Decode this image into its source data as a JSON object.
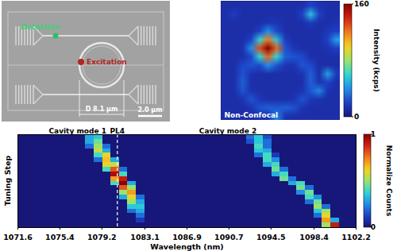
{
  "chart_data": [
    {
      "type": "heatmap",
      "x_label": "Wavelength (nm)",
      "y_label": "Tuning Step",
      "tick_labels": "x",
      "xlim": [
        1071.6,
        1102.2
      ],
      "xticks": [
        1071.6,
        1075.4,
        1079.2,
        1083.1,
        1086.9,
        1090.7,
        1094.5,
        1098.4,
        1102.2
      ],
      "x_edges": [
        1071.6,
        1072.365,
        1073.13,
        1073.895,
        1074.66,
        1075.425,
        1076.19,
        1076.955,
        1077.72,
        1078.485,
        1079.25,
        1080.015,
        1080.78,
        1081.545,
        1082.31,
        1083.075,
        1083.84,
        1084.605,
        1085.37,
        1086.135,
        1086.9,
        1087.665,
        1088.43,
        1089.195,
        1089.96,
        1090.725,
        1091.49,
        1092.255,
        1093.02,
        1093.785,
        1094.55,
        1095.315,
        1096.08,
        1096.845,
        1097.61,
        1098.375,
        1099.14,
        1099.905,
        1100.67,
        1101.435,
        1102.2
      ],
      "cells": [
        [
          0,
          0,
          0,
          0,
          0,
          0,
          0,
          0,
          0.3,
          0.35,
          0,
          0,
          0,
          0,
          0,
          0,
          0,
          0,
          0,
          0,
          0,
          0,
          0,
          0,
          0,
          0,
          0,
          0.2,
          0.35,
          0.15,
          0,
          0,
          0,
          0,
          0,
          0,
          0,
          0,
          0,
          0
        ],
        [
          0,
          0,
          0,
          0,
          0,
          0,
          0,
          0,
          0.3,
          0.45,
          0,
          0,
          0,
          0,
          0,
          0,
          0,
          0,
          0,
          0,
          0,
          0,
          0,
          0,
          0,
          0,
          0,
          0.15,
          0.35,
          0.2,
          0,
          0,
          0,
          0,
          0,
          0,
          0,
          0,
          0,
          0
        ],
        [
          0,
          0,
          0,
          0,
          0,
          0,
          0,
          0,
          0.2,
          0.5,
          0.2,
          0,
          0,
          0,
          0,
          0,
          0,
          0,
          0,
          0,
          0,
          0,
          0,
          0,
          0,
          0,
          0,
          0,
          0.4,
          0.2,
          0,
          0,
          0,
          0,
          0,
          0,
          0,
          0,
          0,
          0
        ],
        [
          0,
          0,
          0,
          0,
          0,
          0,
          0,
          0,
          0,
          0.55,
          0.3,
          0,
          0,
          0,
          0,
          0,
          0,
          0,
          0,
          0,
          0,
          0,
          0,
          0,
          0,
          0,
          0,
          0,
          0.35,
          0.3,
          0,
          0,
          0,
          0,
          0,
          0,
          0,
          0,
          0,
          0
        ],
        [
          0,
          0,
          0,
          0,
          0,
          0,
          0,
          0,
          0,
          0.4,
          0.6,
          0,
          0,
          0,
          0,
          0,
          0,
          0,
          0,
          0,
          0,
          0,
          0,
          0,
          0,
          0,
          0,
          0,
          0.2,
          0.4,
          0.1,
          0,
          0,
          0,
          0,
          0,
          0,
          0,
          0,
          0
        ],
        [
          0,
          0,
          0,
          0,
          0,
          0,
          0,
          0,
          0,
          0.2,
          0.65,
          0.3,
          0,
          0,
          0,
          0,
          0,
          0,
          0,
          0,
          0,
          0,
          0,
          0,
          0,
          0,
          0,
          0,
          0,
          0.4,
          0.25,
          0,
          0,
          0,
          0,
          0,
          0,
          0,
          0,
          0
        ],
        [
          0,
          0,
          0,
          0,
          0,
          0,
          0,
          0,
          0,
          0,
          0.6,
          0.55,
          0,
          0,
          0,
          0,
          0,
          0,
          0,
          0,
          0,
          0,
          0,
          0,
          0,
          0,
          0,
          0,
          0,
          0.3,
          0.4,
          0,
          0,
          0,
          0,
          0,
          0,
          0,
          0,
          0
        ],
        [
          0,
          0,
          0,
          0,
          0,
          0,
          0,
          0,
          0,
          0,
          0.4,
          0.8,
          0.2,
          0,
          0,
          0,
          0,
          0,
          0,
          0,
          0,
          0,
          0,
          0,
          0,
          0,
          0,
          0,
          0,
          0,
          0.45,
          0.2,
          0,
          0,
          0,
          0,
          0,
          0,
          0,
          0
        ],
        [
          0,
          0,
          0,
          0,
          0,
          0,
          0,
          0,
          0,
          0,
          0,
          0.95,
          0.4,
          0,
          0,
          0,
          0,
          0,
          0,
          0,
          0,
          0,
          0,
          0,
          0,
          0,
          0,
          0,
          0,
          0,
          0.3,
          0.4,
          0,
          0,
          0,
          0,
          0,
          0,
          0,
          0
        ],
        [
          0,
          0,
          0,
          0,
          0,
          0,
          0,
          0,
          0,
          0,
          0,
          0.7,
          0.9,
          0,
          0,
          0,
          0,
          0,
          0,
          0,
          0,
          0,
          0,
          0,
          0,
          0,
          0,
          0,
          0,
          0,
          0,
          0.45,
          0.2,
          0,
          0,
          0,
          0,
          0,
          0,
          0
        ],
        [
          0,
          0,
          0,
          0,
          0,
          0,
          0,
          0,
          0,
          0,
          0,
          0.4,
          1,
          0.3,
          0,
          0,
          0,
          0,
          0,
          0,
          0,
          0,
          0,
          0,
          0,
          0,
          0,
          0,
          0,
          0,
          0,
          0,
          0.3,
          0.4,
          0,
          0,
          0,
          0,
          0,
          0
        ],
        [
          0,
          0,
          0,
          0,
          0,
          0,
          0,
          0,
          0,
          0,
          0,
          0,
          0.8,
          0.5,
          0,
          0,
          0,
          0,
          0,
          0,
          0,
          0,
          0,
          0,
          0,
          0,
          0,
          0,
          0,
          0,
          0,
          0,
          0,
          0.45,
          0.2,
          0,
          0,
          0,
          0,
          0
        ],
        [
          0,
          0,
          0,
          0,
          0,
          0,
          0,
          0,
          0,
          0,
          0,
          0,
          0.5,
          0.7,
          0,
          0,
          0,
          0,
          0,
          0,
          0,
          0,
          0,
          0,
          0,
          0,
          0,
          0,
          0,
          0,
          0,
          0,
          0,
          0.25,
          0.45,
          0,
          0,
          0,
          0,
          0
        ],
        [
          0,
          0,
          0,
          0,
          0,
          0,
          0,
          0,
          0,
          0,
          0,
          0,
          0.3,
          0.6,
          0.2,
          0,
          0,
          0,
          0,
          0,
          0,
          0,
          0,
          0,
          0,
          0,
          0,
          0,
          0,
          0,
          0,
          0,
          0,
          0,
          0.4,
          0.25,
          0,
          0,
          0,
          0
        ],
        [
          0,
          0,
          0,
          0,
          0,
          0,
          0,
          0,
          0,
          0,
          0,
          0,
          0,
          0.5,
          0.3,
          0,
          0,
          0,
          0,
          0,
          0,
          0,
          0,
          0,
          0,
          0,
          0,
          0,
          0,
          0,
          0,
          0,
          0,
          0,
          0.2,
          0.45,
          0,
          0,
          0,
          0
        ],
        [
          0,
          0,
          0,
          0,
          0,
          0,
          0,
          0,
          0,
          0,
          0,
          0,
          0,
          0.35,
          0.35,
          0,
          0,
          0,
          0,
          0,
          0,
          0,
          0,
          0,
          0,
          0,
          0,
          0,
          0,
          0,
          0,
          0,
          0,
          0,
          0,
          0.5,
          0.2,
          0,
          0,
          0
        ],
        [
          0,
          0,
          0,
          0,
          0,
          0,
          0,
          0,
          0,
          0,
          0,
          0,
          0,
          0.2,
          0.3,
          0,
          0,
          0,
          0,
          0,
          0,
          0,
          0,
          0,
          0,
          0,
          0,
          0,
          0,
          0,
          0,
          0,
          0,
          0,
          0,
          0.35,
          0.5,
          0,
          0,
          0
        ],
        [
          0,
          0,
          0,
          0,
          0,
          0,
          0,
          0,
          0,
          0,
          0,
          0,
          0,
          0,
          0.2,
          0,
          0,
          0,
          0,
          0,
          0,
          0,
          0,
          0,
          0,
          0,
          0,
          0,
          0,
          0,
          0,
          0,
          0,
          0,
          0,
          0.2,
          0.6,
          0,
          0,
          0
        ],
        [
          0,
          0,
          0,
          0,
          0,
          0,
          0,
          0,
          0,
          0,
          0,
          0,
          0,
          0,
          0.1,
          0,
          0,
          0,
          0,
          0,
          0,
          0,
          0,
          0,
          0,
          0,
          0,
          0,
          0,
          0,
          0,
          0,
          0,
          0,
          0,
          0,
          0.7,
          0.3,
          0,
          0
        ],
        [
          0,
          0,
          0,
          0,
          0,
          0,
          0,
          0,
          0,
          0,
          0,
          0,
          0,
          0,
          0,
          0,
          0,
          0,
          0,
          0,
          0,
          0,
          0,
          0,
          0,
          0,
          0,
          0,
          0,
          0,
          0,
          0,
          0,
          0,
          0,
          0,
          0.5,
          0.9,
          0,
          0
        ]
      ],
      "colorbar": {
        "label": "Normalize Counts",
        "range": [
          0,
          1
        ],
        "ticks": [
          0,
          1
        ]
      },
      "annotations": [
        {
          "text": "Cavity mode 1",
          "x": 1077.0
        },
        {
          "text": "PL4",
          "x": 1080.6,
          "line_style": "dashed"
        },
        {
          "text": "Cavity mode 2",
          "x": 1090.6
        }
      ]
    },
    {
      "type": "image_map",
      "caption": "Non-Confocal",
      "tick_labels": false,
      "cells": [
        [
          12,
          12,
          12,
          12,
          12,
          12,
          12,
          12,
          12,
          12,
          20,
          14,
          12,
          12
        ],
        [
          12,
          18,
          12,
          12,
          12,
          12,
          12,
          12,
          12,
          20,
          55,
          20,
          12,
          12
        ],
        [
          12,
          12,
          12,
          12,
          12,
          15,
          15,
          12,
          12,
          12,
          18,
          12,
          12,
          14
        ],
        [
          12,
          12,
          12,
          12,
          20,
          40,
          22,
          12,
          12,
          12,
          12,
          12,
          16,
          20
        ],
        [
          12,
          12,
          12,
          20,
          60,
          120,
          55,
          18,
          12,
          12,
          12,
          12,
          20,
          45
        ],
        [
          12,
          12,
          14,
          40,
          130,
          160,
          125,
          25,
          15,
          12,
          12,
          12,
          14,
          20
        ],
        [
          12,
          12,
          12,
          22,
          60,
          125,
          60,
          28,
          25,
          22,
          12,
          12,
          12,
          12
        ],
        [
          12,
          12,
          22,
          25,
          22,
          40,
          25,
          15,
          14,
          25,
          22,
          12,
          12,
          12
        ],
        [
          12,
          12,
          25,
          14,
          12,
          12,
          12,
          12,
          12,
          14,
          28,
          12,
          45,
          18
        ],
        [
          12,
          12,
          28,
          12,
          12,
          12,
          12,
          12,
          12,
          12,
          28,
          14,
          20,
          12
        ],
        [
          12,
          12,
          25,
          14,
          12,
          12,
          12,
          12,
          12,
          14,
          26,
          38,
          14,
          12
        ],
        [
          12,
          12,
          14,
          25,
          16,
          12,
          12,
          12,
          14,
          25,
          16,
          14,
          12,
          12
        ],
        [
          12,
          12,
          12,
          14,
          25,
          28,
          26,
          28,
          25,
          14,
          12,
          12,
          12,
          12
        ],
        [
          12,
          12,
          12,
          12,
          12,
          14,
          38,
          14,
          12,
          12,
          12,
          12,
          12,
          12
        ]
      ],
      "colorbar": {
        "label": "Intensity (kcps)",
        "range": [
          0,
          160
        ],
        "ticks": [
          0,
          160
        ]
      }
    }
  ],
  "sem_image": {
    "detection_label": "Detection",
    "excitation_label": "Excitation",
    "diameter_label": "D 8.1 µm",
    "scale_bar_label": "2.0 µm"
  }
}
